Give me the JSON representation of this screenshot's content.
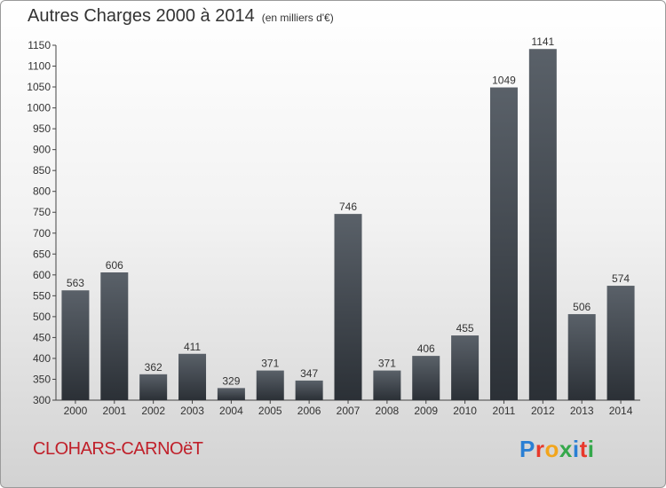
{
  "title": "Autres Charges 2000 à 2014",
  "subtitle": "(en milliers d'€)",
  "commune": "CLOHARS-CARNOëT",
  "logo": {
    "letters": [
      "P",
      "r",
      "o",
      "x",
      "i",
      "t",
      "i"
    ],
    "colors": [
      "#2a7fd4",
      "#e8392b",
      "#f2a51c",
      "#35a84b",
      "#2a7fd4",
      "#e8392b",
      "#35a84b"
    ]
  },
  "chart_data": {
    "type": "bar",
    "title": "Autres Charges 2000 à 2014",
    "subtitle": "(en milliers d'€)",
    "categories": [
      "2000",
      "2001",
      "2002",
      "2003",
      "2004",
      "2005",
      "2006",
      "2007",
      "2008",
      "2009",
      "2010",
      "2011",
      "2012",
      "2013",
      "2014"
    ],
    "values": [
      563,
      606,
      362,
      411,
      329,
      371,
      347,
      746,
      371,
      406,
      455,
      1049,
      1141,
      506,
      574
    ],
    "ylim": [
      300,
      1150
    ],
    "yticks": [
      300,
      350,
      400,
      450,
      500,
      550,
      600,
      650,
      700,
      750,
      800,
      850,
      900,
      950,
      1000,
      1050,
      1100,
      1150
    ],
    "grid": false,
    "bar_color": "#3b4148"
  }
}
